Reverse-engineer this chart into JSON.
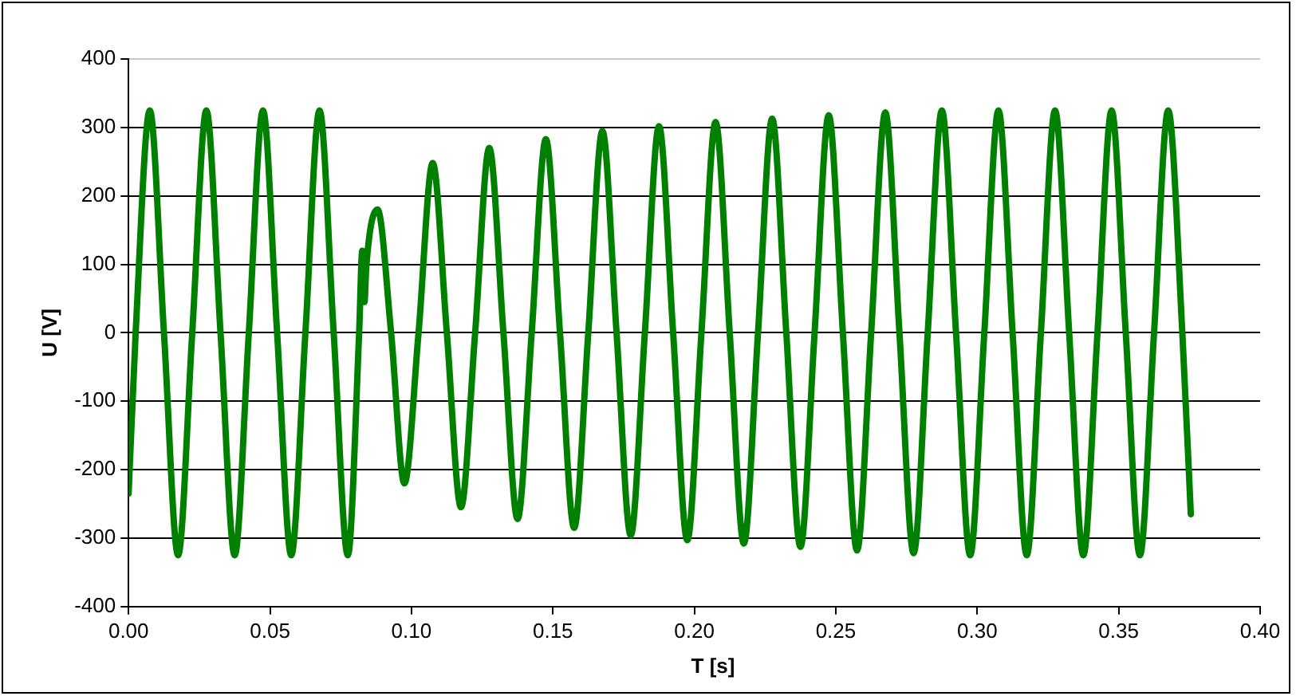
{
  "chart_data": {
    "type": "line",
    "xlabel": "T [s]",
    "ylabel": "U [V]",
    "xlim": [
      0,
      0.4
    ],
    "xticks": [
      {
        "value": 0,
        "label": "0.00"
      },
      {
        "value": 0.05,
        "label": "0.05"
      },
      {
        "value": 0.1,
        "label": "0.10"
      },
      {
        "value": 0.15,
        "label": "0.15"
      },
      {
        "value": 0.2,
        "label": "0.20"
      },
      {
        "value": 0.25,
        "label": "0.25"
      },
      {
        "value": 0.3,
        "label": "0.30"
      },
      {
        "value": 0.35,
        "label": "0.35"
      },
      {
        "value": 0.4,
        "label": "0.40"
      }
    ],
    "ylim": [
      -400,
      400
    ],
    "yticks": [
      -400,
      -300,
      -200,
      -100,
      0,
      100,
      200,
      300,
      400
    ],
    "grid": "y",
    "legend": false,
    "marker": "none",
    "line_style": "solid",
    "series": [
      {
        "color": "#008000",
        "x": [
          0,
          0.0025,
          0.0075,
          0.0125,
          0.0175,
          0.0225,
          0.0275,
          0.0325,
          0.0375,
          0.0425,
          0.0475,
          0.0525,
          0.0575,
          0.0625,
          0.0675,
          0.0725,
          0.0775,
          0.0815,
          0.0826,
          0.0834,
          0.084,
          0.088,
          0.0928,
          0.0975,
          0.1025,
          0.1075,
          0.1125,
          0.1175,
          0.1225,
          0.1275,
          0.1325,
          0.1375,
          0.1425,
          0.1475,
          0.1525,
          0.1575,
          0.1625,
          0.1675,
          0.1725,
          0.1775,
          0.1825,
          0.1875,
          0.1925,
          0.1975,
          0.2025,
          0.2075,
          0.2125,
          0.2175,
          0.2225,
          0.2275,
          0.2325,
          0.2375,
          0.2425,
          0.2475,
          0.2525,
          0.2575,
          0.2625,
          0.2675,
          0.2725,
          0.2775,
          0.2825,
          0.2875,
          0.2925,
          0.2975,
          0.3025,
          0.3075,
          0.3125,
          0.3175,
          0.3225,
          0.3275,
          0.3325,
          0.3375,
          0.3425,
          0.3475,
          0.3525,
          0.3575,
          0.3625,
          0.3675,
          0.3725,
          0.3755
        ],
        "values": [
          -235,
          0,
          325,
          0,
          -325,
          0,
          325,
          0,
          -325,
          0,
          325,
          0,
          -325,
          0,
          325,
          0,
          -325,
          0,
          120,
          45,
          95,
          180,
          0,
          -220,
          0,
          248,
          0,
          -255,
          0,
          270,
          0,
          -272,
          0,
          283,
          0,
          -285,
          0,
          295,
          0,
          -296,
          0,
          302,
          0,
          -303,
          0,
          308,
          0,
          -308,
          0,
          313,
          0,
          -313,
          0,
          318,
          0,
          -318,
          0,
          322,
          0,
          -322,
          0,
          325,
          0,
          -325,
          0,
          325,
          0,
          -325,
          0,
          325,
          0,
          -325,
          0,
          325,
          0,
          -325,
          0,
          325,
          0,
          -265
        ]
      }
    ]
  }
}
